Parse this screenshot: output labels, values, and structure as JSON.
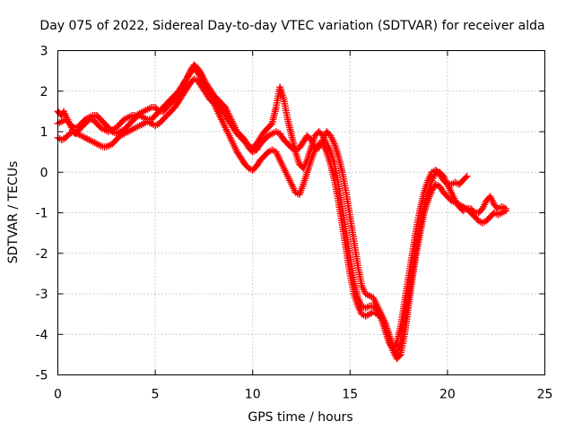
{
  "chart_data": {
    "type": "scatter",
    "title": "Day 075 of 2022, Sidereal Day-to-day VTEC variation (SDTVAR) for receiver alda",
    "xlabel": "GPS time / hours",
    "ylabel": "SDTVAR / TECUs",
    "xlim": [
      0,
      25
    ],
    "ylim": [
      -5,
      3
    ],
    "xticks": [
      "0",
      "5",
      "10",
      "15",
      "20",
      "25"
    ],
    "yticks": [
      "-5",
      "-4",
      "-3",
      "-2",
      "-1",
      "0",
      "1",
      "2",
      "3"
    ],
    "grid": true,
    "legend": "none",
    "marker": "plus",
    "color": "#ff0000",
    "series": [
      {
        "x": [
          0.0,
          0.1,
          0.2,
          0.3,
          0.4,
          0.5,
          0.6,
          0.7,
          0.8,
          0.9,
          1.0,
          1.2,
          1.4,
          1.6,
          1.8,
          2.0,
          2.2,
          2.4,
          2.6,
          2.8,
          3.0,
          3.2,
          3.4,
          3.6,
          3.8,
          4.0,
          4.2,
          4.4,
          4.6,
          4.8,
          5.0,
          5.2,
          5.4,
          5.6,
          5.8,
          6.0,
          6.2,
          6.4,
          6.6,
          6.8,
          7.0,
          7.2,
          7.4,
          7.6,
          7.8,
          8.0,
          8.2,
          8.4,
          8.6,
          8.8,
          9.0,
          9.2,
          9.4,
          9.6,
          9.8,
          10.0,
          10.2,
          10.4,
          10.6,
          10.8,
          11.0,
          11.2,
          11.4,
          11.6,
          11.8,
          12.0,
          12.2,
          12.4,
          12.6,
          12.8,
          13.0,
          13.2,
          13.4,
          13.6,
          13.8,
          14.0,
          14.2,
          14.4,
          14.6,
          14.8,
          15.0,
          15.2,
          15.4,
          15.6,
          15.8,
          16.0,
          16.2,
          16.4,
          16.6,
          16.8,
          17.0,
          17.2,
          17.4,
          17.6,
          17.8,
          18.0,
          18.2,
          18.4,
          18.6,
          18.8,
          19.0,
          19.2,
          19.4,
          19.6,
          19.8,
          20.0,
          20.2,
          20.4,
          20.6,
          20.8,
          21.0,
          21.2,
          21.4,
          21.6,
          21.8,
          22.0,
          22.2,
          22.4,
          22.6,
          22.8,
          23.0
        ],
        "y": [
          1.5,
          1.45,
          1.4,
          1.5,
          1.4,
          1.3,
          1.2,
          1.1,
          1.0,
          0.95,
          1.0,
          1.1,
          1.2,
          1.3,
          1.3,
          1.2,
          1.1,
          1.05,
          1.0,
          1.05,
          1.1,
          1.2,
          1.3,
          1.35,
          1.4,
          1.4,
          1.45,
          1.5,
          1.55,
          1.6,
          1.6,
          1.5,
          1.5,
          1.6,
          1.7,
          1.8,
          1.95,
          2.1,
          2.3,
          2.5,
          2.65,
          2.55,
          2.4,
          2.2,
          2.05,
          1.9,
          1.8,
          1.7,
          1.6,
          1.4,
          1.2,
          1.0,
          0.9,
          0.8,
          0.6,
          0.5,
          0.55,
          0.7,
          0.8,
          0.9,
          0.95,
          1.0,
          0.95,
          0.8,
          0.7,
          0.6,
          0.55,
          0.6,
          0.75,
          0.9,
          0.8,
          0.6,
          0.6,
          0.8,
          1.0,
          0.9,
          0.7,
          0.4,
          0.0,
          -0.5,
          -1.1,
          -1.7,
          -2.3,
          -2.8,
          -3.0,
          -3.05,
          -3.1,
          -3.3,
          -3.5,
          -3.7,
          -4.0,
          -4.3,
          -4.5,
          -4.2,
          -3.6,
          -3.0,
          -2.4,
          -1.8,
          -1.3,
          -0.8,
          -0.5,
          -0.2,
          0.0,
          0.0,
          -0.1,
          -0.3,
          -0.5,
          -0.7,
          -0.85,
          -0.95,
          -0.9,
          -0.9,
          -1.0,
          -1.0,
          -0.9,
          -0.7,
          -0.6,
          -0.8,
          -0.9,
          -0.85,
          -0.9
        ]
      },
      {
        "x": [
          0.0,
          0.2,
          0.4,
          0.6,
          0.8,
          1.0,
          1.2,
          1.4,
          1.6,
          1.8,
          2.0,
          2.2,
          2.4,
          2.6,
          2.8,
          3.0,
          3.2,
          3.4,
          3.6,
          3.8,
          4.0,
          4.2,
          4.4,
          4.6,
          4.8,
          5.0,
          5.2,
          5.4,
          5.6,
          5.8,
          6.0,
          6.2,
          6.4,
          6.6,
          6.8,
          7.0,
          7.2,
          7.4,
          7.6,
          7.8,
          8.0,
          8.2,
          8.4,
          8.6,
          8.8,
          9.0,
          9.2,
          9.4,
          9.6,
          9.8,
          10.0,
          10.2,
          10.4,
          10.6,
          10.8,
          11.0,
          11.2,
          11.4,
          11.6,
          11.8,
          12.0,
          12.2,
          12.4,
          12.6,
          12.8,
          13.0,
          13.2,
          13.4,
          13.6,
          13.8,
          14.0,
          14.2,
          14.4,
          14.6,
          14.8,
          15.0,
          15.2,
          15.4,
          15.6,
          15.8,
          16.0,
          16.2,
          16.4,
          16.6,
          16.8,
          17.0,
          17.2,
          17.4,
          17.6,
          17.8,
          18.0,
          18.2,
          18.4,
          18.6,
          18.8,
          19.0,
          19.2,
          19.4,
          19.6,
          19.8,
          20.0,
          20.2,
          20.4,
          20.6,
          20.8,
          21.0,
          21.2,
          21.4,
          21.6,
          21.8,
          22.0,
          22.2,
          22.4,
          22.6,
          22.8,
          23.0
        ],
        "y": [
          0.85,
          0.8,
          0.85,
          0.95,
          1.0,
          0.95,
          0.9,
          0.85,
          0.8,
          0.75,
          0.7,
          0.65,
          0.62,
          0.65,
          0.7,
          0.8,
          0.9,
          0.95,
          1.0,
          1.05,
          1.1,
          1.15,
          1.2,
          1.25,
          1.2,
          1.15,
          1.2,
          1.3,
          1.4,
          1.5,
          1.6,
          1.75,
          1.9,
          2.05,
          2.2,
          2.3,
          2.25,
          2.1,
          1.95,
          1.8,
          1.7,
          1.5,
          1.3,
          1.1,
          0.9,
          0.7,
          0.5,
          0.35,
          0.2,
          0.1,
          0.05,
          0.15,
          0.3,
          0.4,
          0.5,
          0.55,
          0.5,
          0.3,
          0.1,
          -0.1,
          -0.3,
          -0.5,
          -0.55,
          -0.3,
          0.0,
          0.3,
          0.55,
          0.7,
          0.7,
          0.5,
          0.2,
          -0.2,
          -0.7,
          -1.3,
          -1.9,
          -2.5,
          -3.0,
          -3.3,
          -3.5,
          -3.55,
          -3.5,
          -3.45,
          -3.5,
          -3.6,
          -3.8,
          -4.1,
          -4.4,
          -4.6,
          -4.5,
          -4.0,
          -3.3,
          -2.6,
          -2.0,
          -1.5,
          -1.0,
          -0.7,
          -0.45,
          -0.3,
          -0.35,
          -0.5,
          -0.6,
          -0.7,
          -0.75,
          -0.8,
          -0.85,
          -0.9,
          -1.0,
          -1.1,
          -1.2,
          -1.25,
          -1.2,
          -1.1,
          -1.0,
          -1.05,
          -1.0,
          -0.95
        ]
      },
      {
        "x": [
          0.0,
          0.2,
          0.4,
          0.6,
          0.8,
          1.0,
          1.2,
          1.4,
          1.6,
          1.8,
          2.0,
          2.2,
          2.4,
          2.6,
          2.8,
          3.0,
          3.2,
          3.4,
          3.6,
          3.8,
          4.0,
          4.2,
          4.4,
          4.6,
          4.8,
          5.0,
          5.2,
          5.4,
          5.6,
          5.8,
          6.0,
          6.2,
          6.4,
          6.6,
          6.8,
          7.0,
          7.2,
          7.4,
          7.6,
          7.8,
          8.0,
          8.2,
          8.4,
          8.6,
          8.8,
          9.0,
          9.2,
          9.4,
          9.6,
          9.8,
          10.0,
          10.2,
          10.4,
          10.6,
          10.8,
          11.0,
          11.2,
          11.4,
          11.6,
          11.8,
          12.0,
          12.2,
          12.4,
          12.6,
          12.8,
          13.0,
          13.2,
          13.4,
          13.6,
          13.8,
          14.0,
          14.2,
          14.4,
          14.6,
          14.8,
          15.0,
          15.2,
          15.4,
          15.6,
          15.8,
          16.0,
          16.2,
          16.4,
          16.6,
          16.8,
          17.0,
          17.2,
          17.4,
          17.6,
          17.8,
          18.0,
          18.2,
          18.4,
          18.6,
          18.8,
          19.0,
          19.2,
          19.4,
          19.6,
          19.8,
          20.0,
          20.2,
          20.4,
          20.6,
          20.8,
          21.0
        ],
        "y": [
          1.2,
          1.25,
          1.3,
          1.2,
          1.1,
          1.1,
          1.2,
          1.3,
          1.35,
          1.4,
          1.4,
          1.3,
          1.2,
          1.1,
          1.0,
          0.95,
          1.0,
          1.05,
          1.15,
          1.25,
          1.35,
          1.4,
          1.35,
          1.3,
          1.3,
          1.4,
          1.5,
          1.6,
          1.7,
          1.8,
          1.9,
          2.0,
          2.15,
          2.3,
          2.45,
          2.55,
          2.45,
          2.3,
          2.15,
          2.0,
          1.85,
          1.7,
          1.55,
          1.4,
          1.25,
          1.1,
          0.95,
          0.85,
          0.75,
          0.65,
          0.6,
          0.7,
          0.85,
          1.0,
          1.1,
          1.2,
          1.6,
          2.1,
          1.8,
          1.3,
          0.9,
          0.5,
          0.2,
          0.1,
          0.3,
          0.6,
          0.9,
          1.0,
          0.9,
          0.7,
          0.5,
          0.2,
          -0.3,
          -0.9,
          -1.5,
          -2.1,
          -2.7,
          -3.1,
          -3.3,
          -3.35,
          -3.3,
          -3.3,
          -3.4,
          -3.6,
          -3.9,
          -4.2,
          -4.35,
          -4.2,
          -3.8,
          -3.2,
          -2.6,
          -2.0,
          -1.4,
          -0.9,
          -0.5,
          -0.2,
          0.0,
          0.05,
          -0.05,
          -0.2,
          -0.3,
          -0.3,
          -0.25,
          -0.3,
          -0.2,
          -0.1
        ]
      }
    ]
  }
}
